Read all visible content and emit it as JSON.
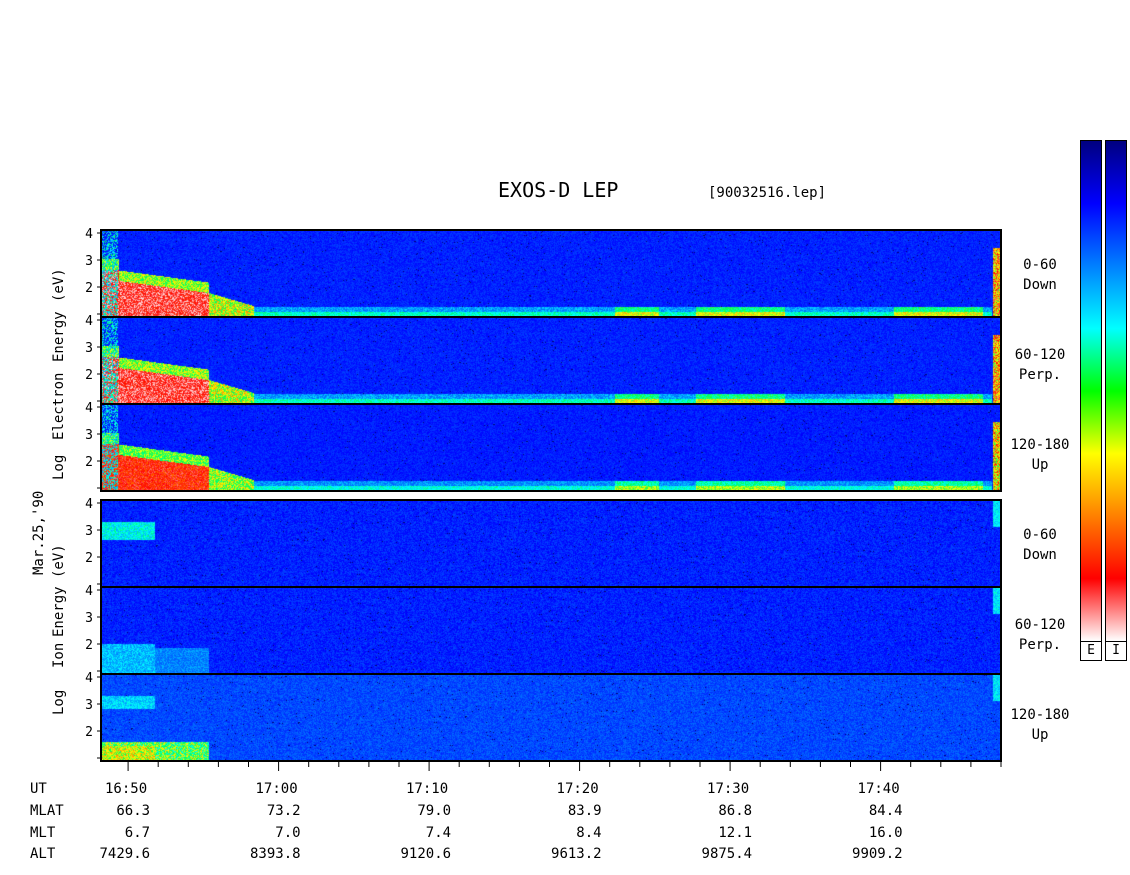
{
  "title": "EXOS-D LEP",
  "filename": "[90032516.lep]",
  "date_label": "Mar.25,'90",
  "electron_group": {
    "ylabel": [
      "Log",
      "Electron",
      "Energy",
      "(eV)"
    ],
    "panels": [
      {
        "channel_line1": "0-60",
        "channel_line2": "Down"
      },
      {
        "channel_line1": "60-120",
        "channel_line2": "Perp."
      },
      {
        "channel_line1": "120-180",
        "channel_line2": "Up"
      }
    ]
  },
  "ion_group": {
    "ylabel": [
      "Log",
      "Ion",
      "Energy",
      "(eV)"
    ],
    "panels": [
      {
        "channel_line1": "0-60",
        "channel_line2": "Down"
      },
      {
        "channel_line1": "60-120",
        "channel_line2": "Perp."
      },
      {
        "channel_line1": "120-180",
        "channel_line2": "Up"
      }
    ]
  },
  "colorbar": {
    "labels": [
      "E",
      "I"
    ],
    "colors": [
      "#000080",
      "#0000ff",
      "#0080ff",
      "#00ffff",
      "#00ff00",
      "#ffff00",
      "#ff8000",
      "#ff0000",
      "#ffffff"
    ]
  },
  "chart_data": {
    "type": "heatmap",
    "title": "EXOS-D LEP",
    "y_ticks": [
      "1",
      "2",
      "3",
      "4"
    ],
    "ylim": [
      1,
      4
    ],
    "x_time_labels": [
      "16:50",
      "17:00",
      "17:10",
      "17:20",
      "17:30",
      "17:40"
    ],
    "ephemeris": {
      "rows": [
        {
          "name": "UT",
          "values": [
            "16:50",
            "17:00",
            "17:10",
            "17:20",
            "17:30",
            "17:40"
          ]
        },
        {
          "name": "MLAT",
          "values": [
            "66.3",
            "73.2",
            "79.0",
            "83.9",
            "86.8",
            "84.4"
          ]
        },
        {
          "name": "MLT",
          "values": [
            "6.7",
            "7.0",
            "7.4",
            "8.4",
            "12.1",
            "16.0"
          ]
        },
        {
          "name": "ALT",
          "values": [
            "7429.6",
            "8393.8",
            "9120.6",
            "9613.2",
            "9875.4",
            "9909.2"
          ]
        }
      ]
    }
  }
}
